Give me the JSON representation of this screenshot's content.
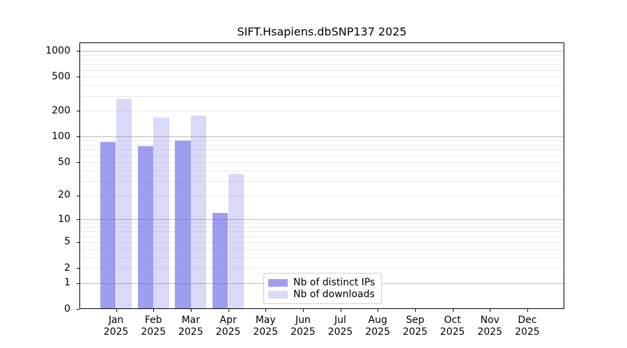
{
  "chart_data": {
    "type": "bar",
    "title": "SIFT.Hsapiens.dbSNP137 2025",
    "categories": [
      "Jan 2025",
      "Feb 2025",
      "Mar 2025",
      "Apr 2025",
      "May 2025",
      "Jun 2025",
      "Jul 2025",
      "Aug 2025",
      "Sep 2025",
      "Oct 2025",
      "Nov 2025",
      "Dec 2025"
    ],
    "months": [
      "Jan",
      "Feb",
      "Mar",
      "Apr",
      "May",
      "Jun",
      "Jul",
      "Aug",
      "Sep",
      "Oct",
      "Nov",
      "Dec"
    ],
    "year": "2025",
    "series": [
      {
        "name": "Nb of distinct IPs",
        "color": "rgba(98,98,230,0.62)",
        "values": [
          87,
          78,
          90,
          12,
          0,
          0,
          0,
          0,
          0,
          0,
          0,
          0
        ]
      },
      {
        "name": "Nb of downloads",
        "color": "rgba(98,98,230,0.24)",
        "values": [
          277,
          168,
          176,
          36,
          0,
          0,
          0,
          0,
          0,
          0,
          0,
          0
        ]
      }
    ],
    "y_axis": {
      "scale": "log1p",
      "ticks": [
        0,
        1,
        2,
        5,
        10,
        20,
        50,
        100,
        200,
        500,
        1000
      ],
      "ylim": [
        0,
        1256
      ],
      "major_grid_at": [
        1,
        10,
        100,
        1000
      ],
      "grid": true
    },
    "legend": {
      "position": "bottom-center",
      "entries": [
        "Nb of distinct IPs",
        "Nb of downloads"
      ]
    },
    "colors": {
      "bar_distinct_ips": "rgba(98,98,230,0.62)",
      "bar_downloads": "rgba(98,98,230,0.24)",
      "grid_major": "#b9b9b9",
      "grid_minor": "#e9e9e9",
      "spine": "#000000",
      "text": "#000000",
      "legend_border": "#cccccc"
    }
  }
}
